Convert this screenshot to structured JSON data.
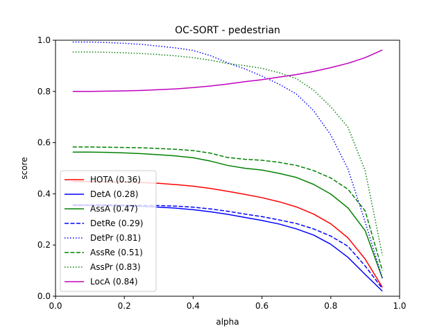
{
  "chart_data": {
    "type": "line",
    "title": "OC-SORT - pedestrian",
    "xlabel": "alpha",
    "ylabel": "score",
    "xlim": [
      0.0,
      1.0
    ],
    "ylim": [
      0.0,
      1.0
    ],
    "xticks": [
      0.0,
      0.2,
      0.4,
      0.6,
      0.8,
      1.0
    ],
    "yticks": [
      0.0,
      0.2,
      0.4,
      0.6,
      0.8,
      1.0
    ],
    "xtick_labels": [
      "0.0",
      "0.2",
      "0.4",
      "0.6",
      "0.8",
      "1.0"
    ],
    "ytick_labels": [
      "0.0",
      "0.2",
      "0.4",
      "0.6",
      "0.8",
      "1.0"
    ],
    "grid": false,
    "legend_position": "lower-left",
    "x": [
      0.05,
      0.1,
      0.15,
      0.2,
      0.25,
      0.3,
      0.35,
      0.4,
      0.45,
      0.5,
      0.55,
      0.6,
      0.65,
      0.7,
      0.75,
      0.8,
      0.85,
      0.9,
      0.95
    ],
    "series": [
      {
        "name": "HOTA (0.36)",
        "color": "#ff0000",
        "dash": "solid",
        "values": [
          0.448,
          0.448,
          0.447,
          0.446,
          0.444,
          0.441,
          0.436,
          0.43,
          0.421,
          0.41,
          0.398,
          0.385,
          0.369,
          0.349,
          0.321,
          0.283,
          0.228,
          0.145,
          0.035
        ]
      },
      {
        "name": "DetA (0.28)",
        "color": "#0000ff",
        "dash": "solid",
        "values": [
          0.355,
          0.355,
          0.354,
          0.353,
          0.351,
          0.348,
          0.344,
          0.338,
          0.33,
          0.32,
          0.308,
          0.296,
          0.282,
          0.263,
          0.239,
          0.203,
          0.152,
          0.085,
          0.02
        ]
      },
      {
        "name": "AssA (0.47)",
        "color": "#008000",
        "dash": "solid",
        "values": [
          0.563,
          0.563,
          0.562,
          0.56,
          0.557,
          0.553,
          0.548,
          0.541,
          0.528,
          0.511,
          0.5,
          0.493,
          0.48,
          0.464,
          0.437,
          0.399,
          0.345,
          0.256,
          0.07
        ]
      },
      {
        "name": "DetRe (0.29)",
        "color": "#0000ff",
        "dash": "dashed",
        "values": [
          0.357,
          0.357,
          0.357,
          0.356,
          0.355,
          0.354,
          0.352,
          0.348,
          0.341,
          0.332,
          0.321,
          0.311,
          0.298,
          0.284,
          0.263,
          0.235,
          0.195,
          0.118,
          0.03
        ]
      },
      {
        "name": "DetPr (0.81)",
        "color": "#0000ff",
        "dash": "dotted",
        "values": [
          0.993,
          0.993,
          0.991,
          0.988,
          0.984,
          0.977,
          0.97,
          0.96,
          0.94,
          0.912,
          0.888,
          0.86,
          0.828,
          0.79,
          0.725,
          0.63,
          0.497,
          0.29,
          0.07
        ]
      },
      {
        "name": "AssRe (0.51)",
        "color": "#008000",
        "dash": "dashed",
        "values": [
          0.583,
          0.583,
          0.582,
          0.581,
          0.58,
          0.577,
          0.574,
          0.569,
          0.559,
          0.542,
          0.535,
          0.531,
          0.523,
          0.511,
          0.491,
          0.462,
          0.418,
          0.333,
          0.1
        ]
      },
      {
        "name": "AssPr (0.83)",
        "color": "#008000",
        "dash": "dotted",
        "values": [
          0.954,
          0.954,
          0.953,
          0.951,
          0.948,
          0.944,
          0.939,
          0.932,
          0.922,
          0.909,
          0.901,
          0.89,
          0.873,
          0.85,
          0.805,
          0.74,
          0.66,
          0.49,
          0.16
        ]
      },
      {
        "name": "LocA (0.84)",
        "color": "#bf00bf",
        "dash": "solid",
        "values": [
          0.8,
          0.8,
          0.801,
          0.802,
          0.804,
          0.807,
          0.81,
          0.815,
          0.821,
          0.829,
          0.838,
          0.846,
          0.856,
          0.866,
          0.878,
          0.893,
          0.91,
          0.932,
          0.962
        ]
      }
    ]
  }
}
